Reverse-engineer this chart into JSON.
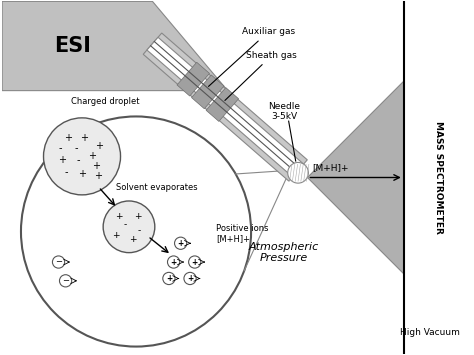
{
  "esi_label": "ESI",
  "auxiliar_gas_label": "Auxiliar gas",
  "sheath_gas_label": "Sheath gas",
  "needle_label": "Needle\n3-5kV",
  "mh_label": "[M+H]+",
  "charged_droplet_label": "Charged droplet",
  "solvent_evap_label": "Solvent evaporates",
  "positive_ions_label": "Positive ions\n[M+H]+",
  "atm_pressure_label": "Atmospheric\nPressure",
  "high_vacuum_label": "High Vacuum",
  "mass_spec_label": "MASS SPECTROMETER",
  "figsize": [
    4.74,
    3.55
  ],
  "dpi": 100,
  "xlim": [
    0,
    10
  ],
  "ylim": [
    0,
    7.5
  ]
}
